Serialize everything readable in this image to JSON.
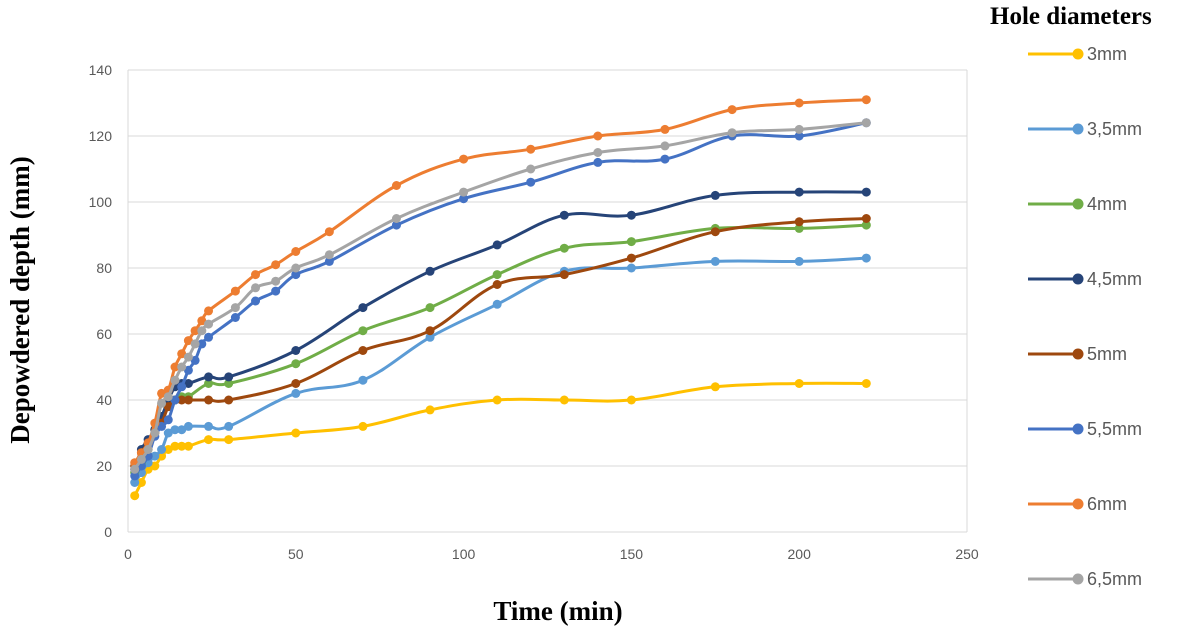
{
  "chart_data": {
    "type": "line",
    "xlabel": "Time (min)",
    "ylabel": "Depowdered depth (mm)",
    "xlim": [
      0,
      250
    ],
    "ylim": [
      0,
      140
    ],
    "xticks": [
      0,
      50,
      100,
      150,
      200,
      250
    ],
    "yticks": [
      0,
      20,
      40,
      60,
      80,
      100,
      120,
      140
    ],
    "grid": "horizontal",
    "legend_title": "Hole diameters",
    "legend_position": "right",
    "series": [
      {
        "name": "3mm",
        "color": "#FFC000",
        "points": [
          [
            2,
            11
          ],
          [
            4,
            15
          ],
          [
            6,
            19
          ],
          [
            8,
            20
          ],
          [
            10,
            23
          ],
          [
            12,
            25
          ],
          [
            14,
            26
          ],
          [
            16,
            26
          ],
          [
            18,
            26
          ],
          [
            24,
            28
          ],
          [
            30,
            28
          ],
          [
            50,
            30
          ],
          [
            70,
            32
          ],
          [
            90,
            37
          ],
          [
            110,
            40
          ],
          [
            130,
            40
          ],
          [
            150,
            40
          ],
          [
            175,
            44
          ],
          [
            200,
            45
          ],
          [
            220,
            45
          ]
        ]
      },
      {
        "name": "3,5mm",
        "color": "#5B9BD5",
        "points": [
          [
            2,
            15
          ],
          [
            4,
            18
          ],
          [
            6,
            21
          ],
          [
            8,
            23
          ],
          [
            10,
            25
          ],
          [
            12,
            30
          ],
          [
            14,
            31
          ],
          [
            16,
            31
          ],
          [
            18,
            32
          ],
          [
            24,
            32
          ],
          [
            30,
            32
          ],
          [
            50,
            42
          ],
          [
            70,
            46
          ],
          [
            90,
            59
          ],
          [
            110,
            69
          ],
          [
            130,
            79
          ],
          [
            150,
            80
          ],
          [
            175,
            82
          ],
          [
            200,
            82
          ],
          [
            220,
            83
          ]
        ]
      },
      {
        "name": "4mm",
        "color": "#70AD47",
        "points": [
          [
            2,
            18
          ],
          [
            4,
            21
          ],
          [
            6,
            25
          ],
          [
            8,
            31
          ],
          [
            10,
            35
          ],
          [
            12,
            38
          ],
          [
            14,
            40
          ],
          [
            16,
            41
          ],
          [
            18,
            41
          ],
          [
            24,
            45
          ],
          [
            30,
            45
          ],
          [
            50,
            51
          ],
          [
            70,
            61
          ],
          [
            90,
            68
          ],
          [
            110,
            78
          ],
          [
            130,
            86
          ],
          [
            150,
            88
          ],
          [
            175,
            92
          ],
          [
            200,
            92
          ],
          [
            220,
            93
          ]
        ]
      },
      {
        "name": "4,5mm",
        "color": "#264478",
        "points": [
          [
            2,
            19
          ],
          [
            4,
            25
          ],
          [
            6,
            28
          ],
          [
            8,
            31
          ],
          [
            10,
            35
          ],
          [
            12,
            40
          ],
          [
            14,
            44
          ],
          [
            16,
            45
          ],
          [
            18,
            45
          ],
          [
            24,
            47
          ],
          [
            30,
            47
          ],
          [
            50,
            55
          ],
          [
            70,
            68
          ],
          [
            90,
            79
          ],
          [
            110,
            87
          ],
          [
            130,
            96
          ],
          [
            150,
            96
          ],
          [
            175,
            102
          ],
          [
            200,
            103
          ],
          [
            220,
            103
          ]
        ]
      },
      {
        "name": "5mm",
        "color": "#9E480E",
        "points": [
          [
            2,
            20
          ],
          [
            4,
            24
          ],
          [
            6,
            27
          ],
          [
            8,
            30
          ],
          [
            10,
            33
          ],
          [
            12,
            38
          ],
          [
            14,
            40
          ],
          [
            16,
            40
          ],
          [
            18,
            40
          ],
          [
            24,
            40
          ],
          [
            30,
            40
          ],
          [
            50,
            45
          ],
          [
            70,
            55
          ],
          [
            90,
            61
          ],
          [
            110,
            75
          ],
          [
            130,
            78
          ],
          [
            150,
            83
          ],
          [
            175,
            91
          ],
          [
            200,
            94
          ],
          [
            220,
            95
          ]
        ]
      },
      {
        "name": "5,5mm",
        "color": "#4472C4",
        "points": [
          [
            2,
            17
          ],
          [
            4,
            20
          ],
          [
            6,
            23
          ],
          [
            8,
            29
          ],
          [
            10,
            32
          ],
          [
            12,
            34
          ],
          [
            14,
            40
          ],
          [
            16,
            44
          ],
          [
            18,
            49
          ],
          [
            20,
            52
          ],
          [
            22,
            57
          ],
          [
            24,
            59
          ],
          [
            32,
            65
          ],
          [
            38,
            70
          ],
          [
            44,
            73
          ],
          [
            50,
            78
          ],
          [
            60,
            82
          ],
          [
            80,
            93
          ],
          [
            100,
            101
          ],
          [
            120,
            106
          ],
          [
            140,
            112
          ],
          [
            160,
            113
          ],
          [
            180,
            120
          ],
          [
            200,
            120
          ],
          [
            220,
            124
          ]
        ]
      },
      {
        "name": "6mm",
        "color": "#ED7D31",
        "points": [
          [
            2,
            21
          ],
          [
            4,
            24
          ],
          [
            6,
            27
          ],
          [
            8,
            33
          ],
          [
            10,
            42
          ],
          [
            12,
            43
          ],
          [
            14,
            50
          ],
          [
            16,
            54
          ],
          [
            18,
            58
          ],
          [
            20,
            61
          ],
          [
            22,
            64
          ],
          [
            24,
            67
          ],
          [
            32,
            73
          ],
          [
            38,
            78
          ],
          [
            44,
            81
          ],
          [
            50,
            85
          ],
          [
            60,
            91
          ],
          [
            80,
            105
          ],
          [
            100,
            113
          ],
          [
            120,
            116
          ],
          [
            140,
            120
          ],
          [
            160,
            122
          ],
          [
            180,
            128
          ],
          [
            200,
            130
          ],
          [
            220,
            131
          ]
        ]
      },
      {
        "name": "6,5mm",
        "color": "#A5A5A5",
        "points": [
          [
            2,
            19
          ],
          [
            4,
            22
          ],
          [
            6,
            25
          ],
          [
            8,
            30
          ],
          [
            10,
            39
          ],
          [
            12,
            41
          ],
          [
            14,
            46
          ],
          [
            16,
            50
          ],
          [
            18,
            53
          ],
          [
            20,
            57
          ],
          [
            22,
            61
          ],
          [
            24,
            63
          ],
          [
            32,
            68
          ],
          [
            38,
            74
          ],
          [
            44,
            76
          ],
          [
            50,
            80
          ],
          [
            60,
            84
          ],
          [
            80,
            95
          ],
          [
            100,
            103
          ],
          [
            120,
            110
          ],
          [
            140,
            115
          ],
          [
            160,
            117
          ],
          [
            180,
            121
          ],
          [
            200,
            122
          ],
          [
            220,
            124
          ]
        ]
      }
    ]
  }
}
